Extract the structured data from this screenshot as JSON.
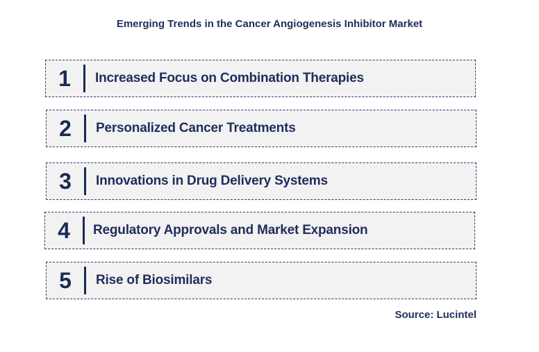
{
  "title": "Emerging Trends in the Cancer Angiogenesis Inhibitor Market",
  "trends": [
    {
      "number": "1",
      "label": "Increased Focus on Combination Therapies"
    },
    {
      "number": "2",
      "label": "Personalized Cancer Treatments"
    },
    {
      "number": "3",
      "label": "Innovations in Drug Delivery Systems"
    },
    {
      "number": "4",
      "label": "Regulatory Approvals and Market Expansion"
    },
    {
      "number": "5",
      "label": "Rise of Biosimilars"
    }
  ],
  "source": "Source: Lucintel",
  "colors": {
    "text": "#1f2d5c",
    "box_fill": "#f2f2f2",
    "box_border": "#2b3a67"
  }
}
